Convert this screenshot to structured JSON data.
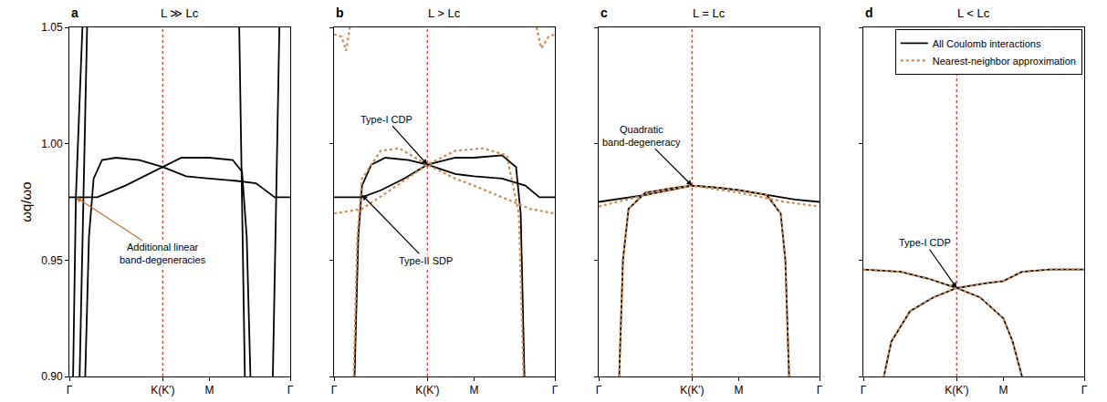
{
  "chart_data": [
    {
      "type": "line",
      "panel": "a",
      "title": "L ≫ Lc",
      "ylabel": "ωq/ωo",
      "xlim": [
        0,
        2.366
      ],
      "ylim": [
        0.9,
        1.05
      ],
      "xticks": [
        {
          "value": 0,
          "label": "Γ"
        },
        {
          "value": 1,
          "label": "K(K')"
        },
        {
          "value": 1.5,
          "label": "M"
        },
        {
          "value": 2.366,
          "label": "Γ"
        }
      ],
      "yticks": [
        {
          "value": 0.9,
          "label": "0.90"
        },
        0.95,
        {
          "value": 1.0,
          "label": "1.00"
        },
        1.05
      ],
      "grid": false,
      "annotations": [
        {
          "text": "Additional linear band-degeneracies",
          "x": 0.07,
          "y": 0.977
        }
      ],
      "series": [
        {
          "name": "All Coulomb interactions",
          "color": "#000000",
          "line_style": "solid",
          "x": [
            0,
            0.3,
            0.6,
            1.0,
            1.2,
            1.5,
            1.75,
            1.85,
            1.9,
            1.94
          ],
          "values": [
            0.977,
            0.977,
            0.982,
            0.99,
            0.994,
            0.994,
            0.993,
            0.988,
            0.96,
            0.9
          ]
        },
        {
          "name": "All Coulomb interactions",
          "color": "#000000",
          "line_style": "solid",
          "x": [
            0.17,
            0.21,
            0.26,
            0.35,
            0.5,
            0.75,
            1.0,
            1.25,
            1.5,
            1.8,
            2.0,
            2.1,
            2.2,
            2.366
          ],
          "values": [
            0.9,
            0.96,
            0.985,
            0.993,
            0.994,
            0.993,
            0.99,
            0.986,
            0.985,
            0.984,
            0.983,
            0.98,
            0.977,
            0.977
          ]
        },
        {
          "name": "All Coulomb interactions",
          "color": "#000000",
          "line_style": "solid",
          "x": [
            0.04,
            0.07,
            0.14
          ],
          "values": [
            0.9,
            0.977,
            1.05
          ]
        },
        {
          "name": "All Coulomb interactions",
          "color": "#000000",
          "line_style": "solid",
          "x": [
            0.11,
            0.19
          ],
          "values": [
            0.9,
            1.05
          ]
        },
        {
          "name": "All Coulomb interactions",
          "color": "#000000",
          "line_style": "solid",
          "x": [
            1.82,
            1.88
          ],
          "values": [
            1.05,
            0.9
          ]
        },
        {
          "name": "All Coulomb interactions",
          "color": "#000000",
          "line_style": "solid",
          "x": [
            2.18,
            2.25
          ],
          "values": [
            0.9,
            1.05
          ]
        }
      ]
    },
    {
      "type": "line",
      "panel": "b",
      "title": "L > Lc",
      "tick_labels": "x",
      "xlim": [
        0,
        2.366
      ],
      "ylim": [
        0.9,
        1.05
      ],
      "xticks": [
        {
          "value": 0,
          "label": "Γ"
        },
        {
          "value": 1,
          "label": "K(K')"
        },
        {
          "value": 1.5,
          "label": "M"
        },
        {
          "value": 2.366,
          "label": "Γ"
        }
      ],
      "yticks": [
        {
          "value": 0.9,
          "label": "0.90"
        },
        0.95,
        {
          "value": 1.0,
          "label": "1.00"
        },
        1.05
      ],
      "grid": false,
      "annotations": [
        {
          "text": "Type-I CDP",
          "x": 1.0,
          "y": 0.991
        },
        {
          "text": "Type-II SDP",
          "x": 0.3,
          "y": 0.978
        }
      ],
      "series": [
        {
          "name": "All Coulomb interactions",
          "color": "#000000",
          "line_style": "solid",
          "x": [
            0.22,
            0.26,
            0.3,
            0.4,
            0.55,
            0.8,
            1.0,
            1.3,
            1.5,
            1.8,
            2.05,
            2.2,
            2.366
          ],
          "values": [
            0.9,
            0.96,
            0.982,
            0.991,
            0.994,
            0.993,
            0.991,
            0.987,
            0.986,
            0.985,
            0.982,
            0.977,
            0.977
          ]
        },
        {
          "name": "All Coulomb interactions",
          "color": "#000000",
          "line_style": "solid",
          "x": [
            0,
            0.3,
            0.5,
            0.75,
            1.0,
            1.3,
            1.5,
            1.8,
            1.95,
            2.0,
            2.04
          ],
          "values": [
            0.977,
            0.977,
            0.98,
            0.985,
            0.991,
            0.994,
            0.994,
            0.995,
            0.99,
            0.97,
            0.9
          ]
        },
        {
          "name": "Nearest-neighbor approximation",
          "color": "#cf8a52",
          "line_style": "dotted",
          "x": [
            0.21,
            0.25,
            0.3,
            0.5,
            0.7,
            1.0,
            1.3,
            1.5,
            1.8,
            2.1,
            2.366
          ],
          "values": [
            0.9,
            0.96,
            0.985,
            0.997,
            0.998,
            0.991,
            0.985,
            0.982,
            0.977,
            0.972,
            0.97
          ]
        },
        {
          "name": "Nearest-neighbor approximation",
          "color": "#cf8a52",
          "line_style": "dotted",
          "x": [
            0,
            0.3,
            0.6,
            1.0,
            1.3,
            1.6,
            1.85,
            1.98,
            2.03
          ],
          "values": [
            0.97,
            0.972,
            0.98,
            0.991,
            0.997,
            0.998,
            0.995,
            0.97,
            0.9
          ]
        },
        {
          "name": "Nearest-neighbor approximation",
          "color": "#cf8a52",
          "line_style": "dotted",
          "x": [
            0,
            0.08,
            0.13,
            0.17
          ],
          "values": [
            1.047,
            1.046,
            1.04,
            1.05
          ]
        },
        {
          "name": "Nearest-neighbor approximation",
          "color": "#cf8a52",
          "line_style": "dotted",
          "x": [
            2.17,
            2.22,
            2.3,
            2.366
          ],
          "values": [
            1.05,
            1.041,
            1.046,
            1.047
          ]
        }
      ]
    },
    {
      "type": "line",
      "panel": "c",
      "title": "L = Lc",
      "tick_labels": "x",
      "xlim": [
        0,
        2.366
      ],
      "ylim": [
        0.9,
        1.05
      ],
      "xticks": [
        {
          "value": 0,
          "label": "Γ"
        },
        {
          "value": 1,
          "label": "K(K')"
        },
        {
          "value": 1.5,
          "label": "M"
        },
        {
          "value": 2.366,
          "label": "Γ"
        }
      ],
      "yticks": [
        {
          "value": 0.9,
          "label": "0.90"
        },
        0.95,
        {
          "value": 1.0,
          "label": "1.00"
        },
        1.05
      ],
      "grid": false,
      "annotations": [
        {
          "text": "Quadratic band-degeneracy",
          "x": 1.0,
          "y": 0.982
        }
      ],
      "series": [
        {
          "name": "All Coulomb interactions",
          "color": "#000000",
          "line_style": "solid",
          "x": [
            0,
            0.5,
            1.0,
            1.3,
            1.5,
            1.8,
            2.1,
            2.366
          ],
          "values": [
            0.975,
            0.978,
            0.982,
            0.981,
            0.98,
            0.978,
            0.976,
            0.975
          ]
        },
        {
          "name": "All Coulomb interactions",
          "color": "#000000",
          "line_style": "solid",
          "x": [
            0.22,
            0.26,
            0.32,
            0.5,
            0.8,
            1.0,
            1.3,
            1.5,
            1.8,
            1.95,
            2.0,
            2.04
          ],
          "values": [
            0.9,
            0.95,
            0.972,
            0.979,
            0.981,
            0.982,
            0.981,
            0.98,
            0.978,
            0.97,
            0.95,
            0.9
          ]
        },
        {
          "name": "Nearest-neighbor approximation",
          "color": "#cf8a52",
          "line_style": "dotted",
          "x": [
            0,
            0.5,
            1.0,
            1.5,
            2.0,
            2.366
          ],
          "values": [
            0.973,
            0.978,
            0.982,
            0.979,
            0.975,
            0.973
          ]
        },
        {
          "name": "Nearest-neighbor approximation",
          "color": "#cf8a52",
          "line_style": "dotted",
          "x": [
            0.22,
            0.26,
            0.32,
            0.5,
            0.8,
            1.0,
            1.3,
            1.5,
            1.8,
            1.95,
            2.0,
            2.04
          ],
          "values": [
            0.9,
            0.95,
            0.972,
            0.979,
            0.981,
            0.982,
            0.981,
            0.98,
            0.978,
            0.97,
            0.95,
            0.9
          ]
        }
      ]
    },
    {
      "type": "line",
      "panel": "d",
      "title": "L < Lc",
      "tick_labels": "x",
      "legend": "upper right",
      "xlim": [
        0,
        2.366
      ],
      "ylim": [
        0.9,
        1.05
      ],
      "xticks": [
        {
          "value": 0,
          "label": "Γ"
        },
        {
          "value": 1,
          "label": "K(K')"
        },
        {
          "value": 1.5,
          "label": "M"
        },
        {
          "value": 2.366,
          "label": "Γ"
        }
      ],
      "yticks": [
        {
          "value": 0.9,
          "label": "0.90"
        },
        0.95,
        {
          "value": 1.0,
          "label": "1.00"
        },
        1.05
      ],
      "grid": false,
      "annotations": [
        {
          "text": "Type-I CDP",
          "x": 1.0,
          "y": 0.938
        }
      ],
      "series": [
        {
          "name": "All Coulomb interactions",
          "color": "#000000",
          "line_style": "solid",
          "x": [
            0,
            0.4,
            0.7,
            1.0,
            1.3,
            1.5,
            1.7,
            2.0,
            2.366
          ],
          "values": [
            0.946,
            0.945,
            0.942,
            0.938,
            0.94,
            0.941,
            0.945,
            0.946,
            0.946
          ]
        },
        {
          "name": "All Coulomb interactions",
          "color": "#000000",
          "line_style": "solid",
          "x": [
            0.22,
            0.3,
            0.5,
            0.75,
            1.0,
            1.25,
            1.5,
            1.6,
            1.7
          ],
          "values": [
            0.9,
            0.915,
            0.928,
            0.934,
            0.938,
            0.934,
            0.925,
            0.915,
            0.9
          ]
        },
        {
          "name": "Nearest-neighbor approximation",
          "color": "#cf8a52",
          "line_style": "dotted",
          "x": [
            0,
            0.4,
            0.7,
            1.0,
            1.3,
            1.5,
            1.7,
            2.0,
            2.366
          ],
          "values": [
            0.946,
            0.945,
            0.942,
            0.938,
            0.94,
            0.941,
            0.945,
            0.946,
            0.946
          ]
        },
        {
          "name": "Nearest-neighbor approximation",
          "color": "#cf8a52",
          "line_style": "dotted",
          "x": [
            0.22,
            0.3,
            0.5,
            0.75,
            1.0,
            1.25,
            1.5,
            1.6,
            1.7
          ],
          "values": [
            0.9,
            0.915,
            0.928,
            0.934,
            0.938,
            0.934,
            0.925,
            0.915,
            0.9
          ]
        }
      ]
    }
  ]
}
